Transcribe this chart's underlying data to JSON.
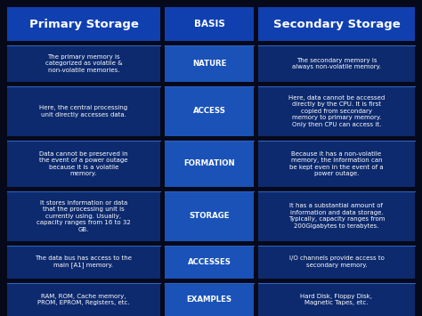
{
  "title_left": "Primary Storage",
  "title_center": "BASIS",
  "title_right": "Secondary Storage",
  "header_bg": "#1040b0",
  "cell_bg_dark": "#0d2a6e",
  "cell_bg_medium": "#1a52b8",
  "separator_color": "#3060c0",
  "text_color": "#ffffff",
  "background_color": "#06091a",
  "fig_w": 4.74,
  "fig_h": 3.55,
  "dpi": 100,
  "rows": [
    {
      "basis": "NATURE",
      "left": "The primary memory is\ncategorized as volatile &\nnon-volatile memories.",
      "right": "The secondary memory is\nalways non-volatile memory."
    },
    {
      "basis": "ACCESS",
      "left": "Here, the central processing\nunit directly accesses data.",
      "right": "Here, data cannot be accessed\ndirectly by the CPU. It is first\ncopied from secondary\nmemory to primary memory.\nOnly then CPU can access it."
    },
    {
      "basis": "FORMATION",
      "left": "Data cannot be preserved in\nthe event of a power outage\nbecause it is a volatile\nmemory.",
      "right": "Because it has a non-volatile\nmemory, the information can\nbe kept even in the event of a\npower outage."
    },
    {
      "basis": "STORAGE",
      "left": "It stores information or data\nthat the processing unit is\ncurrently using. Usually,\ncapacity ranges from 16 to 32\nGB.",
      "right": "It has a substantial amount of\ninformation and data storage.\nTypically, capacity ranges from\n200Gigabytes to terabytes."
    },
    {
      "basis": "ACCESSES",
      "left": "The data bus has access to the\nmain [A1] memory.",
      "right": "I/O channels provide access to\nsecondary memory."
    },
    {
      "basis": "EXAMPLES",
      "left": "RAM, ROM, Cache memory,\nPROM, EPROM, Registers, etc.",
      "right": "Hard Disk, Floppy Disk,\nMagnetic Tapes, etc."
    }
  ]
}
